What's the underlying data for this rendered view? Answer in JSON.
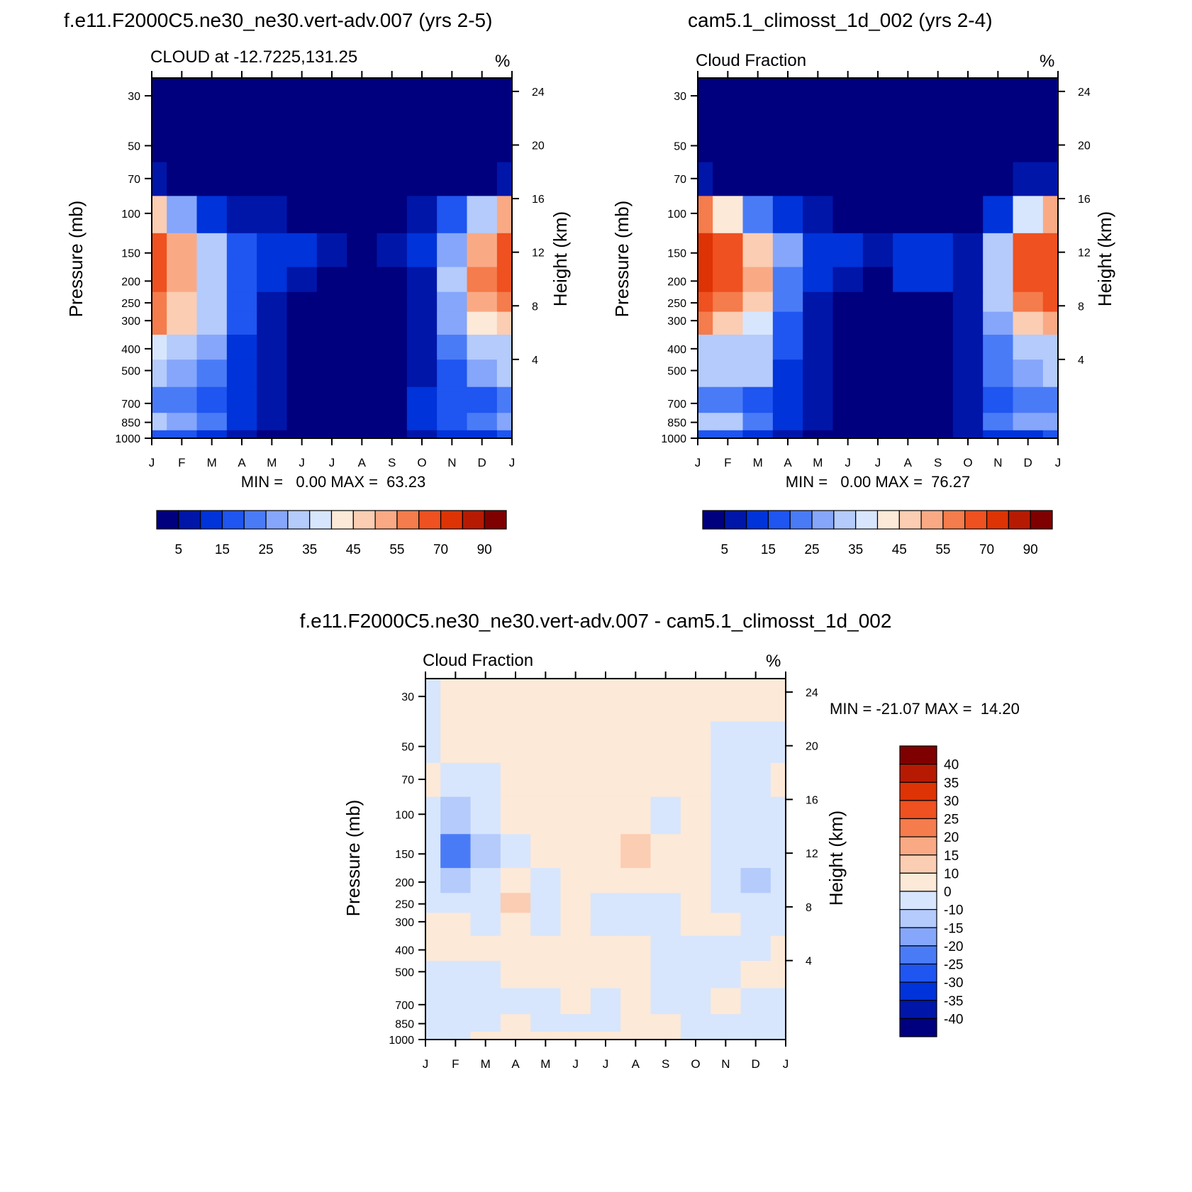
{
  "colors": {
    "abs_palette": [
      "#00007f",
      "#0016a8",
      "#0033d9",
      "#1f55f0",
      "#4a7bf7",
      "#85a6fa",
      "#b4cbfb",
      "#d7e6fd",
      "#fde9d7",
      "#fbcdb3",
      "#f9aa85",
      "#f57c4c",
      "#ef5120",
      "#de3305",
      "#b71a03",
      "#7f0000"
    ],
    "diff_palette": [
      "#00007f",
      "#0016a8",
      "#0033d9",
      "#1f55f0",
      "#4a7bf7",
      "#85a6fa",
      "#b4cbfb",
      "#d7e6fd",
      "#fde9d7",
      "#fbcdb3",
      "#f9aa85",
      "#f57c4c",
      "#ef5120",
      "#de3305",
      "#b71a03",
      "#7f0000"
    ]
  },
  "chart_data": [
    {
      "id": "model",
      "type": "heatmap",
      "title": "f.e11.F2000C5.ne30_ne30.vert-adv.007 (yrs 2-5)",
      "subtitle_left": "CLOUD at -12.7225,131.25",
      "subtitle_right": "%",
      "ylabel": "Pressure (mb)",
      "ylabel_right": "Height (km)",
      "x_ticks": [
        "J",
        "F",
        "M",
        "A",
        "M",
        "J",
        "J",
        "A",
        "S",
        "O",
        "N",
        "D",
        "J"
      ],
      "y_ticks": [
        "30",
        "50",
        "70",
        "100",
        "150",
        "200",
        "250",
        "300",
        "400",
        "500",
        "700",
        "850",
        "1000"
      ],
      "y_pressure": [
        30,
        50,
        70,
        100,
        150,
        200,
        250,
        300,
        400,
        500,
        700,
        850,
        1000
      ],
      "y_ticks_right": [
        "24",
        "20",
        "16",
        "12",
        "8",
        "4"
      ],
      "minmax_text": "MIN =   0.00 MAX =  63.23",
      "levels": [
        0,
        5,
        10,
        15,
        20,
        25,
        30,
        35,
        40,
        45,
        50,
        55,
        60,
        70,
        80,
        90
      ],
      "colorbar_labels": [
        "5",
        "15",
        "25",
        "35",
        "45",
        "55",
        "70",
        "90"
      ],
      "values": [
        [
          1,
          1,
          1,
          1,
          1,
          1,
          1,
          1,
          1,
          1,
          1,
          1,
          1
        ],
        [
          1,
          1,
          1,
          1,
          1,
          1,
          1,
          1,
          1,
          1,
          1,
          1,
          1
        ],
        [
          8,
          4,
          2,
          1,
          1,
          1,
          1,
          1,
          1,
          1,
          2,
          4,
          9
        ],
        [
          45,
          28,
          14,
          8,
          5,
          3,
          3,
          2,
          3,
          5,
          15,
          30,
          50
        ],
        [
          60,
          50,
          32,
          15,
          12,
          12,
          8,
          4,
          8,
          12,
          28,
          52,
          62
        ],
        [
          63,
          53,
          33,
          18,
          10,
          5,
          2,
          1,
          3,
          8,
          30,
          55,
          62
        ],
        [
          58,
          48,
          32,
          18,
          8,
          3,
          1,
          1,
          2,
          8,
          28,
          50,
          58
        ],
        [
          55,
          45,
          32,
          16,
          6,
          2,
          1,
          1,
          1,
          8,
          25,
          40,
          45
        ],
        [
          35,
          32,
          26,
          14,
          6,
          2,
          1,
          1,
          1,
          6,
          20,
          32,
          34
        ],
        [
          30,
          28,
          24,
          13,
          6,
          2,
          1,
          1,
          1,
          6,
          18,
          28,
          32
        ],
        [
          20,
          20,
          16,
          11,
          6,
          1,
          1,
          1,
          2,
          10,
          15,
          18,
          20
        ],
        [
          30,
          28,
          22,
          13,
          6,
          2,
          1,
          1,
          2,
          11,
          18,
          24,
          26
        ],
        [
          15,
          15,
          12,
          8,
          4,
          1,
          1,
          1,
          1,
          8,
          12,
          14,
          15
        ]
      ]
    },
    {
      "id": "control",
      "type": "heatmap",
      "title": "cam5.1_climosst_1d_002 (yrs 2-4)",
      "subtitle_left": "Cloud Fraction",
      "subtitle_right": "%",
      "ylabel": "Pressure (mb)",
      "ylabel_right": "Height (km)",
      "x_ticks": [
        "J",
        "F",
        "M",
        "A",
        "M",
        "J",
        "J",
        "A",
        "S",
        "O",
        "N",
        "D",
        "J"
      ],
      "y_ticks": [
        "30",
        "50",
        "70",
        "100",
        "150",
        "200",
        "250",
        "300",
        "400",
        "500",
        "700",
        "850",
        "1000"
      ],
      "y_pressure": [
        30,
        50,
        70,
        100,
        150,
        200,
        250,
        300,
        400,
        500,
        700,
        850,
        1000
      ],
      "y_ticks_right": [
        "24",
        "20",
        "16",
        "12",
        "8",
        "4"
      ],
      "minmax_text": "MIN =   0.00 MAX =  76.27",
      "levels": [
        0,
        5,
        10,
        15,
        20,
        25,
        30,
        35,
        40,
        45,
        50,
        55,
        60,
        70,
        80,
        90
      ],
      "colorbar_labels": [
        "5",
        "15",
        "25",
        "35",
        "45",
        "55",
        "70",
        "90"
      ],
      "values": [
        [
          1,
          1,
          1,
          1,
          1,
          1,
          1,
          1,
          1,
          1,
          1,
          1,
          1
        ],
        [
          1,
          1,
          1,
          1,
          1,
          1,
          1,
          1,
          1,
          1,
          1,
          1,
          1
        ],
        [
          6,
          3,
          2,
          1,
          1,
          1,
          1,
          1,
          1,
          1,
          2,
          5,
          7
        ],
        [
          55,
          40,
          22,
          12,
          5,
          2,
          2,
          2,
          2,
          3,
          12,
          35,
          50
        ],
        [
          72,
          65,
          48,
          25,
          14,
          10,
          8,
          12,
          12,
          8,
          30,
          60,
          65
        ],
        [
          76,
          68,
          50,
          22,
          10,
          5,
          2,
          12,
          10,
          6,
          32,
          62,
          66
        ],
        [
          68,
          58,
          45,
          20,
          8,
          3,
          1,
          2,
          3,
          6,
          30,
          55,
          60
        ],
        [
          55,
          48,
          38,
          18,
          6,
          2,
          1,
          1,
          1,
          5,
          28,
          45,
          50
        ],
        [
          34,
          33,
          32,
          16,
          5,
          2,
          1,
          1,
          1,
          5,
          22,
          32,
          32
        ],
        [
          34,
          33,
          32,
          14,
          5,
          1,
          1,
          1,
          1,
          5,
          20,
          28,
          30
        ],
        [
          20,
          20,
          18,
          12,
          6,
          1,
          1,
          1,
          1,
          8,
          15,
          20,
          22
        ],
        [
          30,
          34,
          24,
          14,
          8,
          3,
          2,
          1,
          1,
          8,
          20,
          28,
          25
        ],
        [
          15,
          15,
          12,
          8,
          4,
          1,
          1,
          1,
          1,
          8,
          12,
          14,
          15
        ]
      ]
    },
    {
      "id": "difference",
      "type": "heatmap",
      "title": "f.e11.F2000C5.ne30_ne30.vert-adv.007 - cam5.1_climosst_1d_002",
      "subtitle_left": "Cloud Fraction",
      "subtitle_right": "%",
      "ylabel": "Pressure (mb)",
      "ylabel_right": "Height (km)",
      "x_ticks": [
        "J",
        "F",
        "M",
        "A",
        "M",
        "J",
        "J",
        "A",
        "S",
        "O",
        "N",
        "D",
        "J"
      ],
      "y_ticks": [
        "30",
        "50",
        "70",
        "100",
        "150",
        "200",
        "250",
        "300",
        "400",
        "500",
        "700",
        "850",
        "1000"
      ],
      "y_pressure": [
        30,
        50,
        70,
        100,
        150,
        200,
        250,
        300,
        400,
        500,
        700,
        850,
        1000
      ],
      "y_ticks_right": [
        "24",
        "20",
        "16",
        "12",
        "8",
        "4"
      ],
      "minmax_text": "MIN = -21.07 MAX =  14.20",
      "levels": [
        -100,
        -40,
        -35,
        -30,
        -25,
        -20,
        -15,
        -10,
        0,
        10,
        15,
        20,
        25,
        30,
        35,
        40
      ],
      "colorbar_labels": [
        "40",
        "35",
        "30",
        "25",
        "20",
        "15",
        "10",
        "0",
        "-10",
        "-15",
        "-20",
        "-25",
        "-30",
        "-35",
        "-40"
      ],
      "values": [
        [
          -2,
          2,
          2,
          2,
          2,
          2,
          2,
          2,
          2,
          2,
          2,
          2,
          2
        ],
        [
          -2,
          2,
          2,
          2,
          2,
          2,
          2,
          2,
          2,
          2,
          -2,
          -2,
          -2
        ],
        [
          2,
          -2,
          -2,
          2,
          2,
          2,
          2,
          2,
          2,
          2,
          -2,
          -2,
          2
        ],
        [
          -5,
          -12,
          -8,
          2,
          2,
          2,
          2,
          4,
          -2,
          2,
          -2,
          -2,
          -2
        ],
        [
          -10,
          -21,
          -14,
          -3,
          2,
          2,
          2,
          14,
          2,
          2,
          -2,
          -10,
          -2
        ],
        [
          -8,
          -14,
          -10,
          2,
          -5,
          2,
          2,
          2,
          2,
          2,
          -2,
          -12,
          -2
        ],
        [
          -5,
          -6,
          -3,
          12,
          -6,
          2,
          -3,
          -5,
          -3,
          2,
          -2,
          -2,
          -2
        ],
        [
          2,
          2,
          -3,
          2,
          -4,
          2,
          -3,
          -5,
          -2,
          2,
          2,
          -2,
          -2
        ],
        [
          2,
          2,
          2,
          2,
          2,
          2,
          2,
          2,
          -2,
          -2,
          -2,
          -2,
          2
        ],
        [
          -2,
          -2,
          -2,
          2,
          2,
          2,
          2,
          2,
          -2,
          -2,
          -2,
          2,
          2
        ],
        [
          -2,
          -2,
          -2,
          -2,
          -2,
          2,
          -2,
          2,
          -2,
          -2,
          2,
          -2,
          -2
        ],
        [
          -2,
          -2,
          -2,
          2,
          -2,
          -2,
          -2,
          2,
          2,
          -2,
          -2,
          -2,
          -2
        ],
        [
          -2,
          -2,
          2,
          2,
          2,
          2,
          2,
          2,
          2,
          -2,
          -2,
          -2,
          -2
        ]
      ]
    }
  ]
}
